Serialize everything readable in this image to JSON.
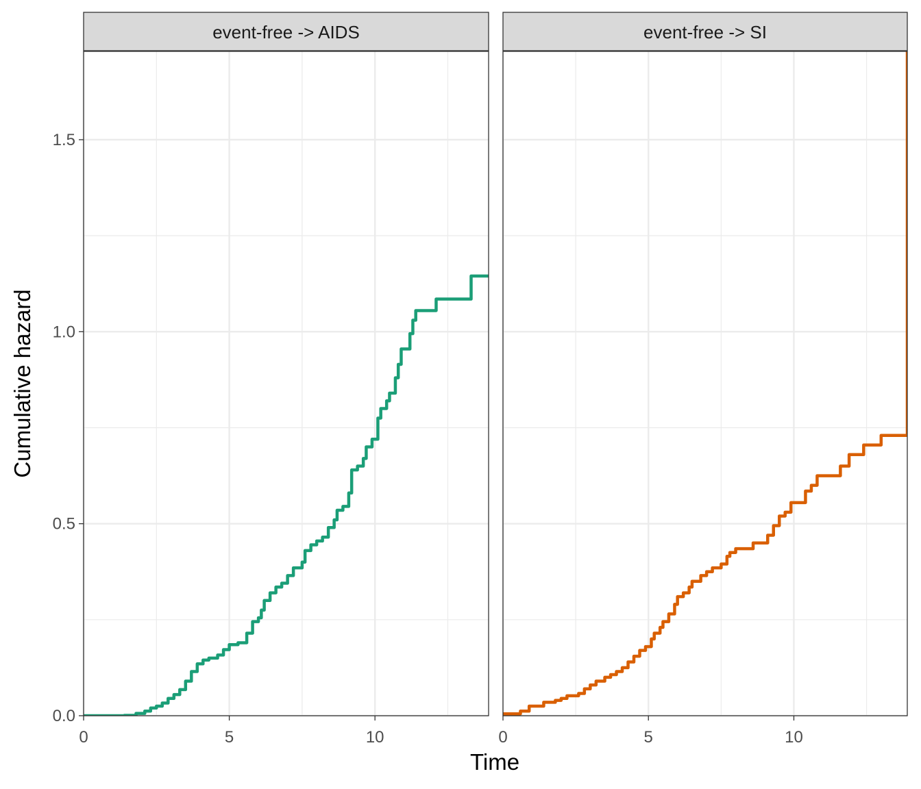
{
  "chart_data": {
    "type": "line",
    "step": true,
    "xlabel": "Time",
    "ylabel": "Cumulative hazard",
    "xlim": [
      0,
      13.9
    ],
    "ylim": [
      0,
      1.73
    ],
    "y_ticks": [
      {
        "value": 0,
        "label": "0.0"
      },
      {
        "value": 0.5,
        "label": "0.5"
      },
      {
        "value": 1.0,
        "label": "1.0"
      },
      {
        "value": 1.5,
        "label": "1.5"
      }
    ],
    "x_ticks": [
      {
        "value": 0,
        "label": "0"
      },
      {
        "value": 5,
        "label": "5"
      },
      {
        "value": 10,
        "label": "10"
      }
    ],
    "grid": true,
    "panels": [
      {
        "strip": "event-free -> AIDS",
        "color": "#1b9e77",
        "points": [
          [
            0,
            0
          ],
          [
            1.4,
            0.001
          ],
          [
            1.8,
            0.006
          ],
          [
            2.1,
            0.012
          ],
          [
            2.3,
            0.02
          ],
          [
            2.5,
            0.025
          ],
          [
            2.7,
            0.033
          ],
          [
            2.9,
            0.045
          ],
          [
            3.1,
            0.055
          ],
          [
            3.3,
            0.068
          ],
          [
            3.5,
            0.09
          ],
          [
            3.7,
            0.115
          ],
          [
            3.9,
            0.135
          ],
          [
            4.1,
            0.145
          ],
          [
            4.3,
            0.15
          ],
          [
            4.6,
            0.158
          ],
          [
            4.8,
            0.172
          ],
          [
            5.0,
            0.185
          ],
          [
            5.3,
            0.19
          ],
          [
            5.6,
            0.215
          ],
          [
            5.8,
            0.245
          ],
          [
            6.0,
            0.255
          ],
          [
            6.1,
            0.275
          ],
          [
            6.2,
            0.3
          ],
          [
            6.4,
            0.32
          ],
          [
            6.6,
            0.335
          ],
          [
            6.8,
            0.345
          ],
          [
            7.0,
            0.365
          ],
          [
            7.2,
            0.385
          ],
          [
            7.5,
            0.4
          ],
          [
            7.6,
            0.43
          ],
          [
            7.8,
            0.445
          ],
          [
            8.0,
            0.455
          ],
          [
            8.2,
            0.465
          ],
          [
            8.4,
            0.49
          ],
          [
            8.6,
            0.51
          ],
          [
            8.7,
            0.535
          ],
          [
            8.9,
            0.545
          ],
          [
            9.1,
            0.58
          ],
          [
            9.2,
            0.64
          ],
          [
            9.4,
            0.65
          ],
          [
            9.6,
            0.67
          ],
          [
            9.7,
            0.7
          ],
          [
            9.9,
            0.72
          ],
          [
            10.1,
            0.775
          ],
          [
            10.2,
            0.8
          ],
          [
            10.4,
            0.82
          ],
          [
            10.5,
            0.84
          ],
          [
            10.7,
            0.88
          ],
          [
            10.8,
            0.915
          ],
          [
            10.9,
            0.955
          ],
          [
            11.2,
            0.995
          ],
          [
            11.3,
            1.03
          ],
          [
            11.4,
            1.055
          ],
          [
            12.1,
            1.085
          ],
          [
            13.3,
            1.145
          ],
          [
            13.9,
            1.145
          ]
        ]
      },
      {
        "strip": "event-free -> SI",
        "color": "#d95f02",
        "points": [
          [
            0,
            0.005
          ],
          [
            0.6,
            0.012
          ],
          [
            0.9,
            0.025
          ],
          [
            1.4,
            0.035
          ],
          [
            1.8,
            0.04
          ],
          [
            2.0,
            0.045
          ],
          [
            2.2,
            0.052
          ],
          [
            2.6,
            0.058
          ],
          [
            2.8,
            0.07
          ],
          [
            3.0,
            0.08
          ],
          [
            3.2,
            0.09
          ],
          [
            3.5,
            0.1
          ],
          [
            3.7,
            0.107
          ],
          [
            3.9,
            0.115
          ],
          [
            4.1,
            0.125
          ],
          [
            4.3,
            0.14
          ],
          [
            4.5,
            0.155
          ],
          [
            4.7,
            0.17
          ],
          [
            4.9,
            0.18
          ],
          [
            5.1,
            0.2
          ],
          [
            5.2,
            0.215
          ],
          [
            5.4,
            0.23
          ],
          [
            5.5,
            0.245
          ],
          [
            5.7,
            0.265
          ],
          [
            5.9,
            0.29
          ],
          [
            6.0,
            0.31
          ],
          [
            6.2,
            0.32
          ],
          [
            6.4,
            0.335
          ],
          [
            6.5,
            0.35
          ],
          [
            6.8,
            0.365
          ],
          [
            7.0,
            0.375
          ],
          [
            7.2,
            0.385
          ],
          [
            7.5,
            0.395
          ],
          [
            7.7,
            0.415
          ],
          [
            7.8,
            0.425
          ],
          [
            8.0,
            0.435
          ],
          [
            8.6,
            0.45
          ],
          [
            9.1,
            0.47
          ],
          [
            9.3,
            0.495
          ],
          [
            9.5,
            0.52
          ],
          [
            9.7,
            0.53
          ],
          [
            9.9,
            0.555
          ],
          [
            10.4,
            0.585
          ],
          [
            10.6,
            0.6
          ],
          [
            10.8,
            0.625
          ],
          [
            11.6,
            0.65
          ],
          [
            11.9,
            0.68
          ],
          [
            12.4,
            0.705
          ],
          [
            13.0,
            0.73
          ],
          [
            13.9,
            0.73
          ],
          [
            13.9,
            1.73
          ]
        ]
      }
    ]
  }
}
